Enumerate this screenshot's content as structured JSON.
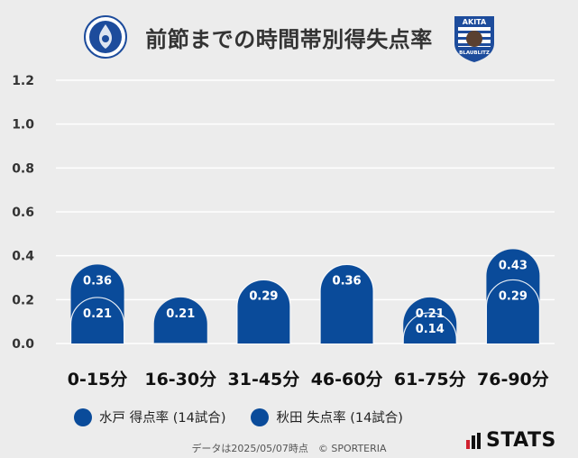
{
  "title": "前節までの時間帯別得失点率",
  "footer": "データは2025/05/07時点　© SPORTERIA",
  "logos": {
    "left_team_emblem": "mito-hollyhock-emblem",
    "right_team_emblem": "akita-blaublitz-emblem",
    "right_emblem_text_top": "AKITA",
    "right_emblem_text_bottom": "BLAUBLITZ",
    "stats_logo": "STATS"
  },
  "colors": {
    "bar": "#0a4b9a",
    "grid": "#ffffff",
    "background": "#ececec"
  },
  "chart_data": {
    "type": "bar",
    "categories": [
      "0-15分",
      "16-30分",
      "31-45分",
      "46-60分",
      "61-75分",
      "76-90分"
    ],
    "series": [
      {
        "name": "水戸 得点率 (14試合)",
        "values": [
          0.36,
          0.21,
          0.29,
          0.36,
          0.21,
          0.43
        ]
      },
      {
        "name": "秋田 失点率 (14試合)",
        "values": [
          0.21,
          0.0,
          0.29,
          0.36,
          0.14,
          0.29
        ]
      }
    ],
    "series_value_labels": [
      [
        "0.36",
        "0.21",
        "0.29",
        "0.36",
        "0.21",
        "0.43"
      ],
      [
        "0.21",
        "",
        "0.29",
        "0.36",
        "0.14",
        "0.29"
      ]
    ],
    "stacked": true,
    "ylim": [
      0,
      1.2
    ],
    "yticks": [
      "0.0",
      "0.2",
      "0.4",
      "0.6",
      "0.8",
      "1.0",
      "1.2"
    ],
    "grid": true,
    "legend_position": "bottom"
  }
}
